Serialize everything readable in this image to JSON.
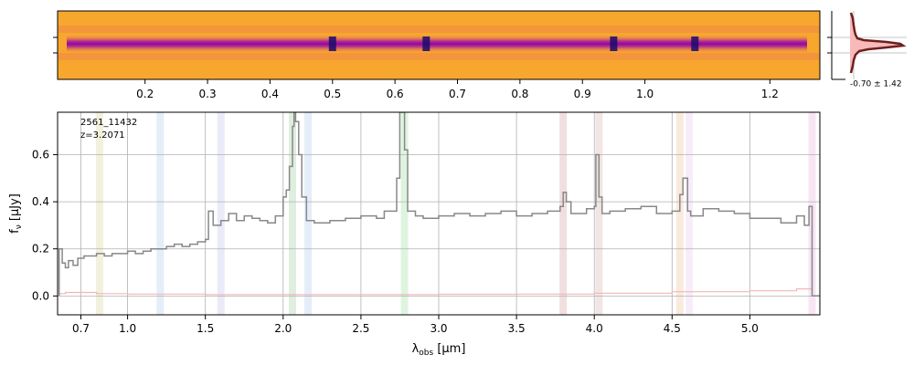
{
  "figure": {
    "label_id": "2561_11432",
    "label_z": "z=3.2071",
    "xlabel_main": "λ",
    "xlabel_sub": "obs",
    "xlabel_unit": " [μm]",
    "ylabel_main": "f",
    "ylabel_sub": "ν",
    "ylabel_unit": " [μJy]",
    "profile_label": "-0.70 ± 1.42"
  },
  "colors": {
    "spectrum": "#888888",
    "error": "#f4b6b6",
    "grid": "#b0b0b0",
    "profile_line": "#6e1f1f",
    "profile_fill": "#f7b9b9"
  },
  "chart_data": [
    {
      "type": "heatmap",
      "name": "2d-spectrum",
      "colormap": "plasma",
      "top_ticks": [
        "0.2",
        "0.3",
        "0.4",
        "0.5",
        "0.6",
        "0.7",
        "0.8",
        "0.9",
        "1.0",
        "1.2"
      ],
      "top_tick_values": [
        0.2,
        0.3,
        0.4,
        0.5,
        0.6,
        0.7,
        0.8,
        0.9,
        1.0,
        1.2
      ],
      "trace_absorption_x": [
        0.5,
        0.65,
        0.95,
        1.08
      ]
    },
    {
      "type": "line",
      "name": "cross-dispersion-profile",
      "annotation": "-0.70 ± 1.42"
    },
    {
      "type": "line",
      "name": "1d-spectrum",
      "xlabel": "λobs [μm]",
      "ylabel": "fν [μJy]",
      "xlim": [
        0.55,
        5.45
      ],
      "ylim": [
        -0.08,
        0.78
      ],
      "xticks": [
        "0.7",
        "1.0",
        "1.5",
        "2.0",
        "2.5",
        "3.0",
        "3.5",
        "4.0",
        "4.5",
        "5.0"
      ],
      "xtick_values": [
        0.7,
        1.0,
        1.5,
        2.0,
        2.5,
        3.0,
        3.5,
        4.0,
        4.5,
        5.0
      ],
      "yticks": [
        "0.0",
        "0.2",
        "0.4",
        "0.6"
      ],
      "ytick_values": [
        0.0,
        0.2,
        0.4,
        0.6
      ],
      "grid": true,
      "bands": [
        {
          "x": 0.82,
          "color": "#b5b045"
        },
        {
          "x": 1.21,
          "color": "#6f9de0"
        },
        {
          "x": 1.6,
          "color": "#8a8ae0"
        },
        {
          "x": 2.06,
          "color": "#4fa04f"
        },
        {
          "x": 2.16,
          "color": "#6f9de0"
        },
        {
          "x": 2.78,
          "color": "#4fc04f"
        },
        {
          "x": 3.8,
          "color": "#b05050"
        },
        {
          "x": 4.03,
          "color": "#b07070"
        },
        {
          "x": 4.55,
          "color": "#e08a4a"
        },
        {
          "x": 4.61,
          "color": "#d09ae0"
        },
        {
          "x": 5.4,
          "color": "#d070c0"
        }
      ],
      "series": [
        {
          "role": "flux",
          "x": [
            0.56,
            0.58,
            0.6,
            0.62,
            0.65,
            0.68,
            0.72,
            0.76,
            0.8,
            0.85,
            0.9,
            0.95,
            1.0,
            1.05,
            1.1,
            1.15,
            1.2,
            1.25,
            1.3,
            1.35,
            1.4,
            1.45,
            1.5,
            1.52,
            1.55,
            1.6,
            1.65,
            1.7,
            1.75,
            1.8,
            1.85,
            1.9,
            1.95,
            2.0,
            2.02,
            2.04,
            2.06,
            2.07,
            2.08,
            2.1,
            2.12,
            2.15,
            2.2,
            2.3,
            2.4,
            2.5,
            2.6,
            2.65,
            2.7,
            2.73,
            2.75,
            2.78,
            2.8,
            2.85,
            2.9,
            3.0,
            3.1,
            3.2,
            3.3,
            3.4,
            3.5,
            3.6,
            3.7,
            3.78,
            3.8,
            3.82,
            3.85,
            3.9,
            3.95,
            4.0,
            4.01,
            4.03,
            4.05,
            4.1,
            4.2,
            4.3,
            4.4,
            4.5,
            4.55,
            4.57,
            4.6,
            4.62,
            4.7,
            4.8,
            4.9,
            5.0,
            5.1,
            5.2,
            5.3,
            5.35,
            5.38,
            5.4
          ],
          "y": [
            0.2,
            0.14,
            0.12,
            0.15,
            0.13,
            0.16,
            0.17,
            0.17,
            0.18,
            0.17,
            0.18,
            0.18,
            0.19,
            0.18,
            0.19,
            0.2,
            0.2,
            0.21,
            0.22,
            0.21,
            0.22,
            0.23,
            0.24,
            0.36,
            0.3,
            0.32,
            0.35,
            0.32,
            0.34,
            0.33,
            0.32,
            0.31,
            0.34,
            0.42,
            0.45,
            0.55,
            0.72,
            0.78,
            0.74,
            0.6,
            0.42,
            0.32,
            0.31,
            0.32,
            0.33,
            0.34,
            0.33,
            0.36,
            0.36,
            0.5,
            0.78,
            0.62,
            0.36,
            0.34,
            0.33,
            0.34,
            0.35,
            0.34,
            0.35,
            0.36,
            0.34,
            0.35,
            0.36,
            0.38,
            0.44,
            0.4,
            0.35,
            0.35,
            0.37,
            0.38,
            0.6,
            0.42,
            0.35,
            0.36,
            0.37,
            0.38,
            0.35,
            0.36,
            0.43,
            0.5,
            0.36,
            0.34,
            0.37,
            0.36,
            0.35,
            0.33,
            0.33,
            0.31,
            0.34,
            0.3,
            0.38,
            0.0
          ]
        },
        {
          "role": "error",
          "x": [
            0.56,
            0.6,
            0.8,
            1.0,
            1.5,
            2.0,
            2.5,
            3.0,
            3.5,
            4.0,
            4.5,
            5.0,
            5.3,
            5.4
          ],
          "y": [
            0.01,
            0.015,
            0.01,
            0.008,
            0.006,
            0.006,
            0.006,
            0.007,
            0.008,
            0.012,
            0.018,
            0.022,
            0.03,
            0.04
          ]
        }
      ]
    }
  ]
}
